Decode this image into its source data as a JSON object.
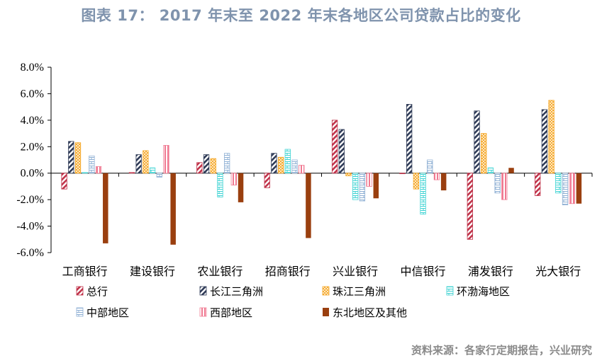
{
  "title": "图表 17： 2017 年末至 2022 年末各地区公司贷款占比的变化",
  "source": "资料来源：各家行定期报告，兴业研究",
  "chart_data": {
    "type": "bar",
    "categories": [
      "工商银行",
      "建设银行",
      "农业银行",
      "招商银行",
      "兴业银行",
      "中信银行",
      "浦发银行",
      "光大银行"
    ],
    "ylim": [
      -6,
      8
    ],
    "yticks": [
      "8.0%",
      "6.0%",
      "4.0%",
      "2.0%",
      "0.0%",
      "-2.0%",
      "-4.0%",
      "-6.0%"
    ],
    "ytick_values": [
      8,
      6,
      4,
      2,
      0,
      -2,
      -4,
      -6
    ],
    "legend_position": "bottom",
    "series": [
      {
        "name": "总行",
        "color": "#c0334a",
        "pattern": "diag",
        "values": [
          -1.2,
          0.05,
          0.8,
          -1.1,
          4.0,
          0.0,
          -5.0,
          -1.7
        ]
      },
      {
        "name": "长江三角洲",
        "color": "#2f3b57",
        "pattern": "diag",
        "values": [
          2.4,
          1.4,
          1.4,
          1.5,
          3.3,
          5.2,
          4.7,
          4.8
        ]
      },
      {
        "name": "珠江三角洲",
        "color": "#f5a623",
        "pattern": "cross",
        "values": [
          2.3,
          1.7,
          1.1,
          1.2,
          -0.2,
          -1.2,
          3.0,
          5.5
        ]
      },
      {
        "name": "环渤海地区",
        "color": "#3fd3d3",
        "pattern": "brick",
        "values": [
          0.05,
          0.4,
          -1.8,
          1.8,
          -2.0,
          -3.1,
          0.4,
          -1.5
        ]
      },
      {
        "name": "中部地区",
        "color": "#8fb0d4",
        "pattern": "brick",
        "values": [
          1.3,
          -0.3,
          1.5,
          1.0,
          -2.1,
          1.0,
          -1.5,
          -2.4
        ]
      },
      {
        "name": "西部地区",
        "color": "#f07a92",
        "pattern": "vert",
        "values": [
          0.5,
          2.1,
          -0.9,
          0.6,
          -1.0,
          -0.5,
          -2.0,
          -2.3
        ]
      },
      {
        "name": "东北地区及其他",
        "color": "#9a3f0f",
        "pattern": "solid",
        "values": [
          -5.3,
          -5.4,
          -2.2,
          -4.9,
          -1.9,
          -1.3,
          0.4,
          -2.3
        ]
      }
    ]
  }
}
